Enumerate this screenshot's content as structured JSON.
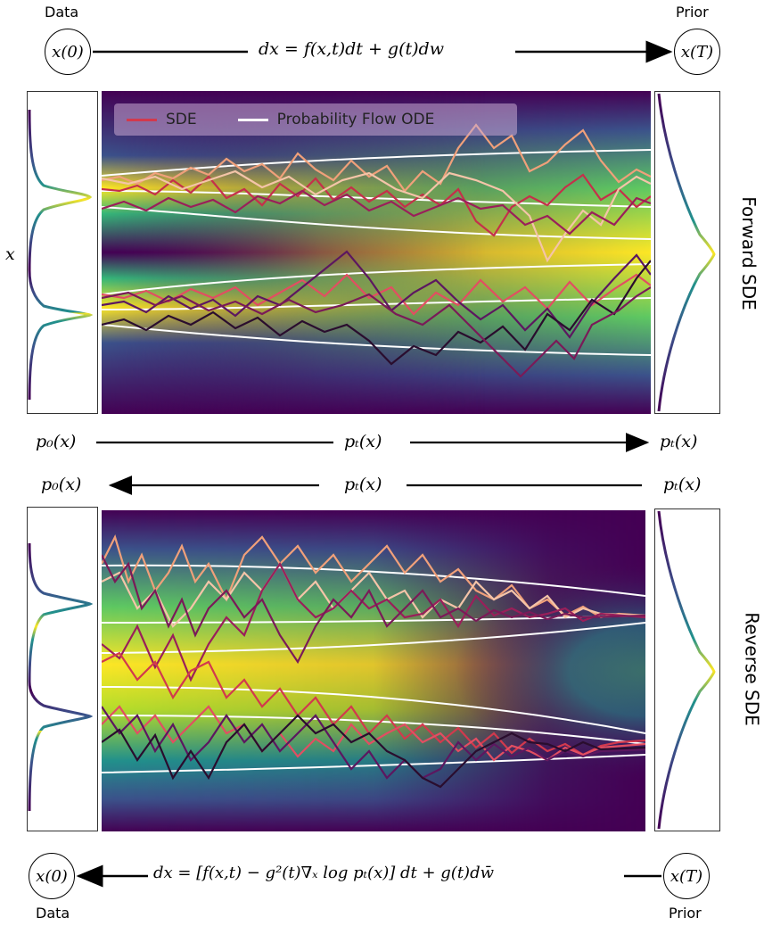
{
  "top": {
    "data_label": "Data",
    "prior_label": "Prior",
    "start_node": "x(0)",
    "end_node": "x(T)",
    "equation": "dx = f(x,t)dt + g(t)dw"
  },
  "forward": {
    "side_label": "Forward SDE",
    "axis_label": "x",
    "legend": {
      "sde": "SDE",
      "ode": "Probability Flow ODE"
    }
  },
  "middle": {
    "row1": {
      "left": "p₀(x)",
      "center": "pₜ(x)",
      "right": "pₜ(x)"
    },
    "row2": {
      "left": "p₀(x)",
      "center": "pₜ(x)",
      "right": "pₜ(x)"
    }
  },
  "reverse": {
    "side_label": "Reverse SDE"
  },
  "bottom": {
    "start_node": "x(0)",
    "end_node": "x(T)",
    "equation": "dx = [f(x,t) − g²(t)∇ₓ log pₜ(x)] dt + g(t)dw̄",
    "data_label": "Data",
    "prior_label": "Prior"
  },
  "colors": {
    "sde": "#d2394d",
    "ode": "#ffffff",
    "viridis_dark": "#440154",
    "viridis_mid": "#21918c",
    "viridis_bright": "#fde725"
  }
}
